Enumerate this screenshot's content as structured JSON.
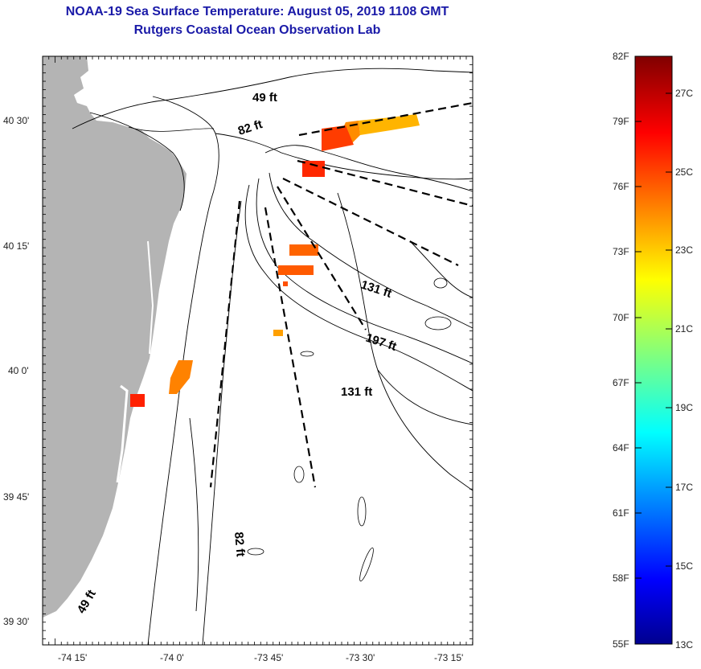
{
  "title": "NOAA-19 Sea Surface Temperature:  August 05, 2019 1108 GMT",
  "subtitle": "Rutgers Coastal Ocean Observation Lab",
  "map": {
    "lat_labels": [
      "40 30'",
      "40 15'",
      "40 0'",
      "39 45'",
      "39 30'"
    ],
    "lon_labels": [
      "-74 15'",
      "-74 0'",
      "-73 45'",
      "-73 30'",
      "-73 15'"
    ],
    "depth_labels": [
      "49 ft",
      "82 ft",
      "131 ft",
      "197 ft",
      "131 ft",
      "82 ft",
      "49 ft"
    ],
    "land_color": "#b4b4b4",
    "contour_color": "#000000"
  },
  "colorbar": {
    "fahrenheit_labels": [
      "82F",
      "79F",
      "76F",
      "73F",
      "70F",
      "67F",
      "64F",
      "61F",
      "58F",
      "55F"
    ],
    "celsius_labels": [
      "27C",
      "25C",
      "23C",
      "21C",
      "19C",
      "17C",
      "15C",
      "13C"
    ],
    "range_f": [
      55,
      82
    ],
    "range_c": [
      13,
      28
    ],
    "colormap": "jet"
  }
}
